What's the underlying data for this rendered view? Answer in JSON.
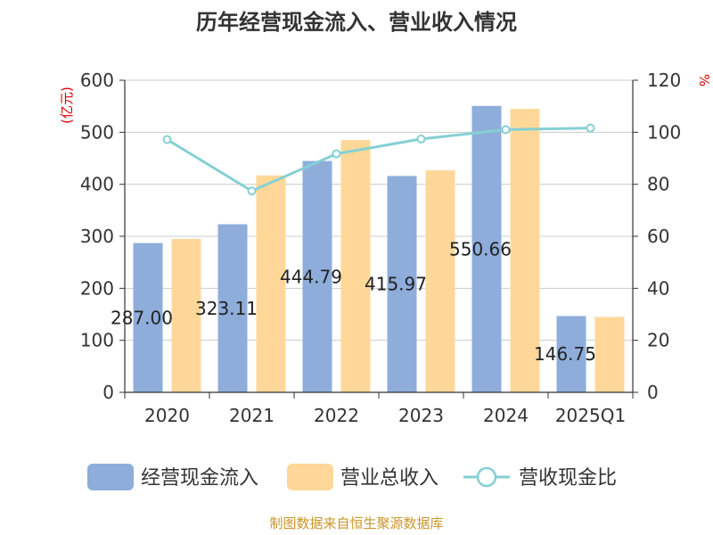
{
  "chart_data": {
    "type": "bar",
    "title": "历年经营现金流入、营业收入情况",
    "categories": [
      "2020",
      "2021",
      "2022",
      "2023",
      "2024",
      "2025Q1"
    ],
    "series": [
      {
        "name": "经营现金流入",
        "type": "bar",
        "axis": "left",
        "color": "#8eaddb",
        "values": [
          287.0,
          323.11,
          444.79,
          415.97,
          550.66,
          146.75
        ],
        "labels": [
          "287.00",
          "323.11",
          "444.79",
          "415.97",
          "550.66",
          "146.75"
        ]
      },
      {
        "name": "营业总收入",
        "type": "bar",
        "axis": "left",
        "color": "#ffd899",
        "values": [
          295.0,
          417.0,
          485.0,
          427.0,
          545.0,
          145.0
        ]
      },
      {
        "name": "营收现金比",
        "type": "line",
        "axis": "right",
        "color": "#85d0d3",
        "values": [
          97.2,
          77.4,
          91.7,
          97.4,
          101.0,
          101.6
        ]
      }
    ],
    "ylabel_left": "(亿元)",
    "ylabel_right": "%",
    "ylim_left": [
      0,
      600
    ],
    "ylim_right": [
      0,
      120
    ],
    "yticks_left": [
      "0",
      "100",
      "200",
      "300",
      "400",
      "500",
      "600"
    ],
    "yticks_right": [
      "0",
      "20",
      "40",
      "60",
      "80",
      "100",
      "120"
    ],
    "grid": true,
    "legend_position": "bottom"
  },
  "source": "制图数据来自恒生聚源数据库"
}
